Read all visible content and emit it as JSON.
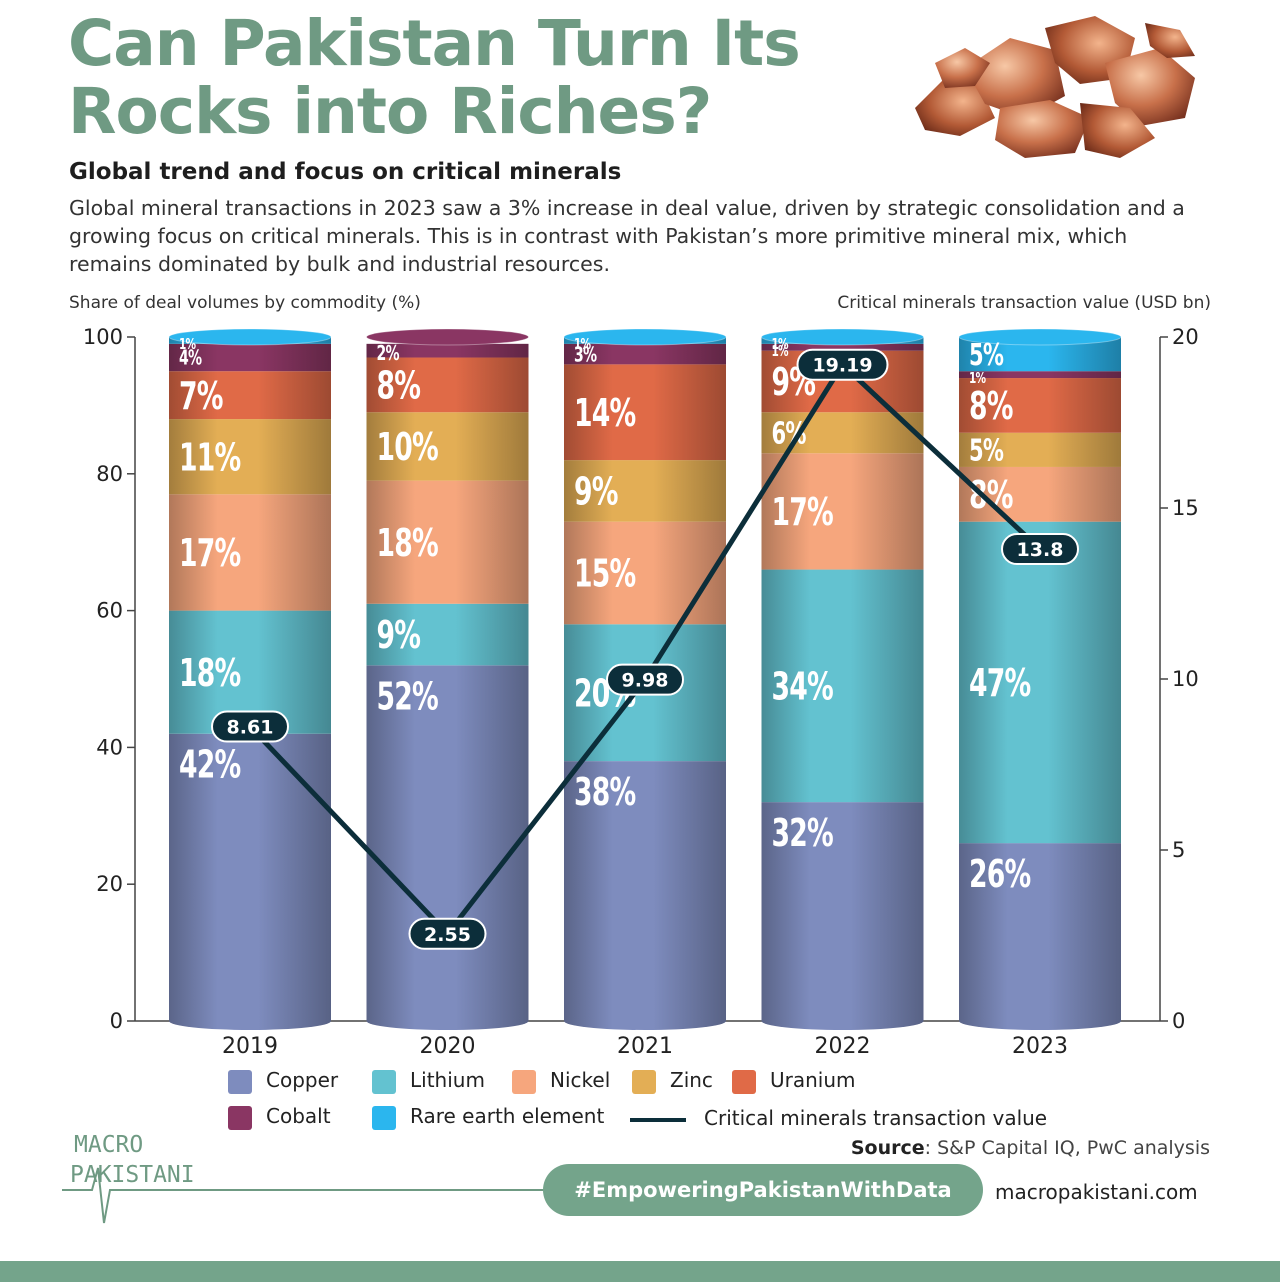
{
  "header": {
    "title": "Can Pakistan Turn Its Rocks into Riches?",
    "subtitle": "Global trend and focus on critical minerals",
    "description": "Global mineral transactions in 2023 saw a 3% increase in deal value, driven by strategic consolidation and a growing focus on critical minerals. This is in contrast with Pakistan’s more primitive mineral mix, which remains dominated by bulk and industrial resources."
  },
  "chart_data": {
    "type": "bar",
    "stacked": true,
    "categories": [
      "2019",
      "2020",
      "2021",
      "2022",
      "2023"
    ],
    "y_left_label": "Share of deal volumes by commodity (%)",
    "y_right_label": "Critical minerals transaction value (USD bn)",
    "y_left_ticks": [
      0,
      20,
      40,
      60,
      80,
      100
    ],
    "y_right_ticks": [
      0,
      5,
      10,
      15,
      20
    ],
    "ylim_left": [
      0,
      100
    ],
    "ylim_right": [
      0,
      20
    ],
    "series": [
      {
        "name": "Copper",
        "color": "#7e8cbe",
        "values": [
          42,
          52,
          38,
          32,
          26
        ]
      },
      {
        "name": "Lithium",
        "color": "#63c2d0",
        "values": [
          18,
          9,
          20,
          34,
          47
        ]
      },
      {
        "name": "Nickel",
        "color": "#f6a67d",
        "values": [
          17,
          18,
          15,
          17,
          8
        ]
      },
      {
        "name": "Zinc",
        "color": "#e3ae55",
        "values": [
          11,
          10,
          9,
          6,
          5
        ]
      },
      {
        "name": "Uranium",
        "color": "#e06a47",
        "values": [
          7,
          8,
          14,
          9,
          8
        ]
      },
      {
        "name": "Cobalt",
        "color": "#8a3663",
        "values": [
          4,
          2,
          3,
          1,
          1
        ]
      },
      {
        "name": "Rare earth element",
        "color": "#2bb6ee",
        "values": [
          1,
          0,
          1,
          1,
          5
        ]
      }
    ],
    "line": {
      "name": "Critical minerals transaction value",
      "color": "#0c2e3a",
      "values": [
        8.61,
        2.55,
        9.98,
        19.19,
        13.8
      ],
      "labels": [
        "8.61",
        "2.55",
        "9.98",
        "19.19",
        "13.8"
      ]
    },
    "segment_labels": [
      [
        "42%",
        "18%",
        "17%",
        "11%",
        "7%",
        "4%",
        "1%"
      ],
      [
        "52%",
        "9%",
        "18%",
        "10%",
        "8%",
        "2%",
        ""
      ],
      [
        "38%",
        "20%",
        "15%",
        "9%",
        "14%",
        "3%",
        "1%"
      ],
      [
        "32%",
        "34%",
        "17%",
        "6%",
        "9%",
        "1%",
        "1%"
      ],
      [
        "26%",
        "47%",
        "8%",
        "5%",
        "8%",
        "1%",
        "5%"
      ]
    ]
  },
  "legend": {
    "items": [
      "Copper",
      "Lithium",
      "Nickel",
      "Zinc",
      "Uranium",
      "Cobalt",
      "Rare earth element"
    ],
    "line_label": "Critical minerals transaction value"
  },
  "footer": {
    "source_label": "Source",
    "source_text": ": S&P Capital IQ, PwC analysis",
    "logo_line1": "MACRO",
    "logo_line2": "PAKISTANI",
    "hashtag": "#EmpoweringPakistanWithData",
    "website": "macropakistani.com"
  }
}
